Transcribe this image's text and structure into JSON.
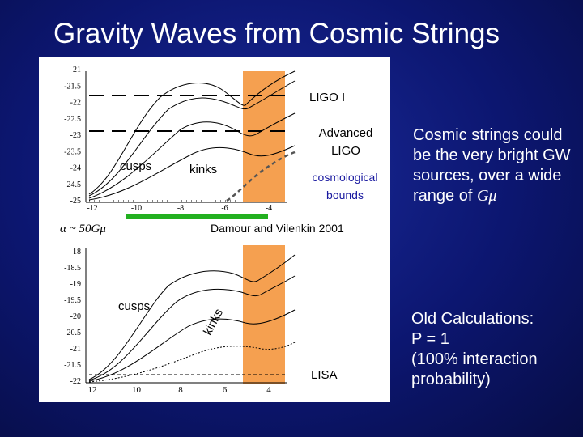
{
  "title": "Gravity Waves from Cosmic Strings",
  "top_plot": {
    "y_ticks": [
      "21",
      "-21.5",
      "-22",
      "-22.5",
      "-23",
      "-23.5",
      "-24",
      "-24.5",
      "-25"
    ],
    "x_ticks": [
      "-12",
      "-10",
      "-8",
      "-6",
      "-4"
    ],
    "labels": {
      "ligo1": "LIGO I",
      "advanced_ligo": "Advanced LIGO",
      "cusps": "cusps",
      "kinks": "kinks",
      "cosmological_bounds": "cosmological bounds",
      "alpha": "α ~ 50Gμ",
      "citation": "Damour and Vilenkin 2001"
    }
  },
  "bottom_plot": {
    "y_ticks": [
      "-18",
      "-18.5",
      "-19",
      "-19.5",
      "-20",
      "20.5",
      "-21",
      "-21.5",
      "-22"
    ],
    "x_ticks": [
      "12",
      "10",
      "8",
      "6",
      "4"
    ],
    "labels": {
      "cusps": "cusps",
      "kinks": "kinks",
      "lisa": "LISA"
    }
  },
  "side_text": {
    "top": "Cosmic strings could be the very bright GW sources, over a wide range of",
    "top_symbol": "Gμ",
    "bottom_line1": "Old Calculations:",
    "bottom_line2": "P = 1",
    "bottom_line3": "(100% interaction probability)"
  },
  "colors": {
    "background": "#0c1670",
    "orange_band": "#f5a050",
    "green_bar": "#22b020",
    "blue_label": "#1a1aa0"
  }
}
